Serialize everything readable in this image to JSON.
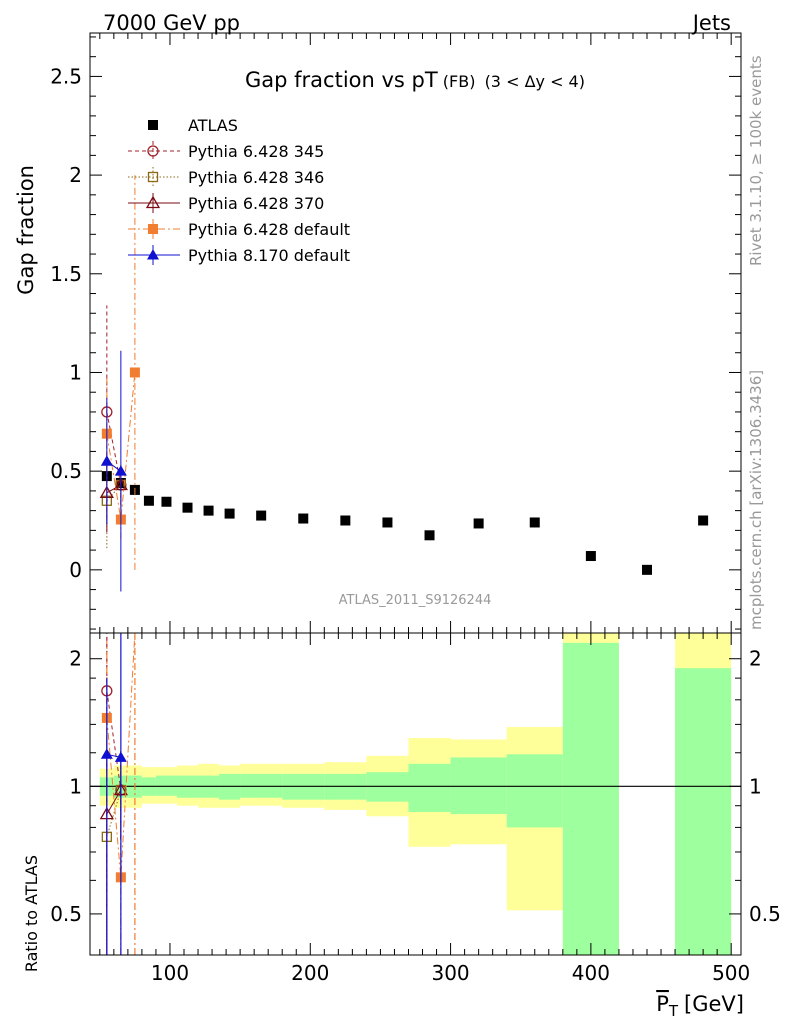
{
  "header": {
    "left": "7000 GeV pp",
    "right": "Jets"
  },
  "side_text": {
    "rivet": "Rivet 3.1.10, ≥ 100k events",
    "mcplots": "mcplots.cern.ch [arXiv:1306.3436]"
  },
  "colors": {
    "atlas": "#000000",
    "p345": "#a0202a",
    "p346": "#8b6914",
    "p370": "#7a0b14",
    "pdefault": "#f07d30",
    "p8": "#1010d0",
    "band_inner": "#9dff9d",
    "band_outer": "#ffff99"
  },
  "chart_data": [
    {
      "type": "scatter",
      "title": "Gap fraction vs pT",
      "title_sub": "(FB)",
      "title_cond": "(3 < Δy < 4)",
      "ylabel": "Gap fraction",
      "watermark": "ATLAS_2011_S9126244",
      "xlim": [
        43,
        507
      ],
      "ylim": [
        -0.32,
        2.72
      ],
      "yticks": [
        "0",
        "0.5",
        "1",
        "1.5",
        "2",
        "2.5"
      ],
      "legend_position": "top-left",
      "series": [
        {
          "name": "ATLAS",
          "marker": "square-filled",
          "x": [
            55,
            65,
            75,
            85,
            97.5,
            112.5,
            127.5,
            142.5,
            165,
            195,
            225,
            255,
            285,
            320,
            360,
            400,
            440,
            480
          ],
          "y": [
            0.475,
            0.44,
            0.405,
            0.35,
            0.345,
            0.315,
            0.3,
            0.285,
            0.275,
            0.26,
            0.25,
            0.24,
            0.175,
            0.235,
            0.24,
            0.07,
            0.0,
            0.25
          ]
        },
        {
          "name": "Pythia 6.428 345",
          "marker": "circle-open",
          "x": [
            55,
            65
          ],
          "y": [
            0.8,
            0.43
          ],
          "yerr": [
            0.54,
            0.1
          ]
        },
        {
          "name": "Pythia 6.428 346",
          "marker": "square-open",
          "x": [
            55,
            65
          ],
          "y": [
            0.35,
            0.43
          ],
          "yerr": [
            0.24,
            0.1
          ]
        },
        {
          "name": "Pythia 6.428 370",
          "marker": "triangle-open",
          "x": [
            55,
            65
          ],
          "y": [
            0.39,
            0.43
          ],
          "yerr": [
            0.2,
            0.1
          ]
        },
        {
          "name": "Pythia 6.428 default",
          "marker": "square-filled",
          "x": [
            55,
            65,
            75
          ],
          "y": [
            0.69,
            0.255,
            1.0
          ],
          "yerr": [
            0.28,
            0.1,
            1.0
          ]
        },
        {
          "name": "Pythia 8.170 default",
          "marker": "triangle-filled",
          "x": [
            55,
            65
          ],
          "y": [
            0.55,
            0.5
          ],
          "yerr": [
            0.32,
            0.61
          ]
        }
      ]
    },
    {
      "type": "line",
      "ylabel": "Ratio to ATLAS",
      "xlabel": "P_T [GeV]",
      "xlabel_main": "P",
      "xlabel_sub": "T",
      "xlabel_unit": "[GeV]",
      "yscale": "log",
      "ylim": [
        0.4,
        2.3
      ],
      "xticks": [
        "100",
        "200",
        "300",
        "400",
        "500"
      ],
      "yticks": [
        "0.5",
        "1",
        "2"
      ],
      "bands": {
        "edges": [
          50,
          60,
          70,
          80,
          90,
          105,
          120,
          135,
          150,
          180,
          210,
          240,
          270,
          300,
          340,
          380,
          420,
          460,
          500
        ],
        "inner_hi": [
          1.05,
          1.06,
          1.06,
          1.05,
          1.06,
          1.06,
          1.06,
          1.07,
          1.07,
          1.07,
          1.07,
          1.08,
          1.13,
          1.17,
          1.19,
          2.18,
          null,
          1.9,
          null
        ],
        "inner_lo": [
          0.95,
          0.94,
          0.94,
          0.95,
          0.95,
          0.94,
          0.94,
          0.93,
          0.94,
          0.93,
          0.93,
          0.92,
          0.87,
          0.86,
          0.8,
          0.3,
          null,
          0.3,
          null
        ],
        "outer_hi": [
          1.1,
          1.12,
          1.12,
          1.11,
          1.11,
          1.12,
          1.13,
          1.12,
          1.13,
          1.13,
          1.14,
          1.18,
          1.3,
          1.29,
          1.38,
          3.0,
          null,
          3.0,
          null
        ],
        "outer_lo": [
          0.9,
          0.89,
          0.89,
          0.91,
          0.91,
          0.9,
          0.89,
          0.89,
          0.9,
          0.89,
          0.88,
          0.85,
          0.72,
          0.73,
          0.51,
          0.3,
          null,
          0.3,
          null
        ]
      },
      "series": [
        {
          "name": "Pythia 6.428 345",
          "x": [
            55,
            65
          ],
          "y": [
            1.68,
            0.98
          ],
          "ylo": [
            0.5,
            0.75
          ],
          "yhi": [
            2.8,
            1.21
          ]
        },
        {
          "name": "Pythia 6.428 346",
          "x": [
            55,
            65
          ],
          "y": [
            0.76,
            0.98
          ],
          "ylo": [
            0.26,
            0.75
          ],
          "yhi": [
            1.22,
            1.21
          ]
        },
        {
          "name": "Pythia 6.428 370",
          "x": [
            55,
            65
          ],
          "y": [
            0.86,
            0.98
          ],
          "ylo": [
            0.3,
            0.75
          ],
          "yhi": [
            1.3,
            1.21
          ]
        },
        {
          "name": "Pythia 6.428 default",
          "x": [
            55,
            65,
            75
          ],
          "y": [
            1.45,
            0.61,
            2.3
          ],
          "ylo": [
            0.5,
            0.36,
            0.3
          ],
          "yhi": [
            2.2,
            0.86,
            3.0
          ]
        },
        {
          "name": "Pythia 8.170 default",
          "x": [
            55,
            65
          ],
          "y": [
            1.19,
            1.17
          ],
          "ylo": [
            0.3,
            0.3
          ],
          "yhi": [
            1.8,
            2.6
          ]
        }
      ]
    }
  ]
}
